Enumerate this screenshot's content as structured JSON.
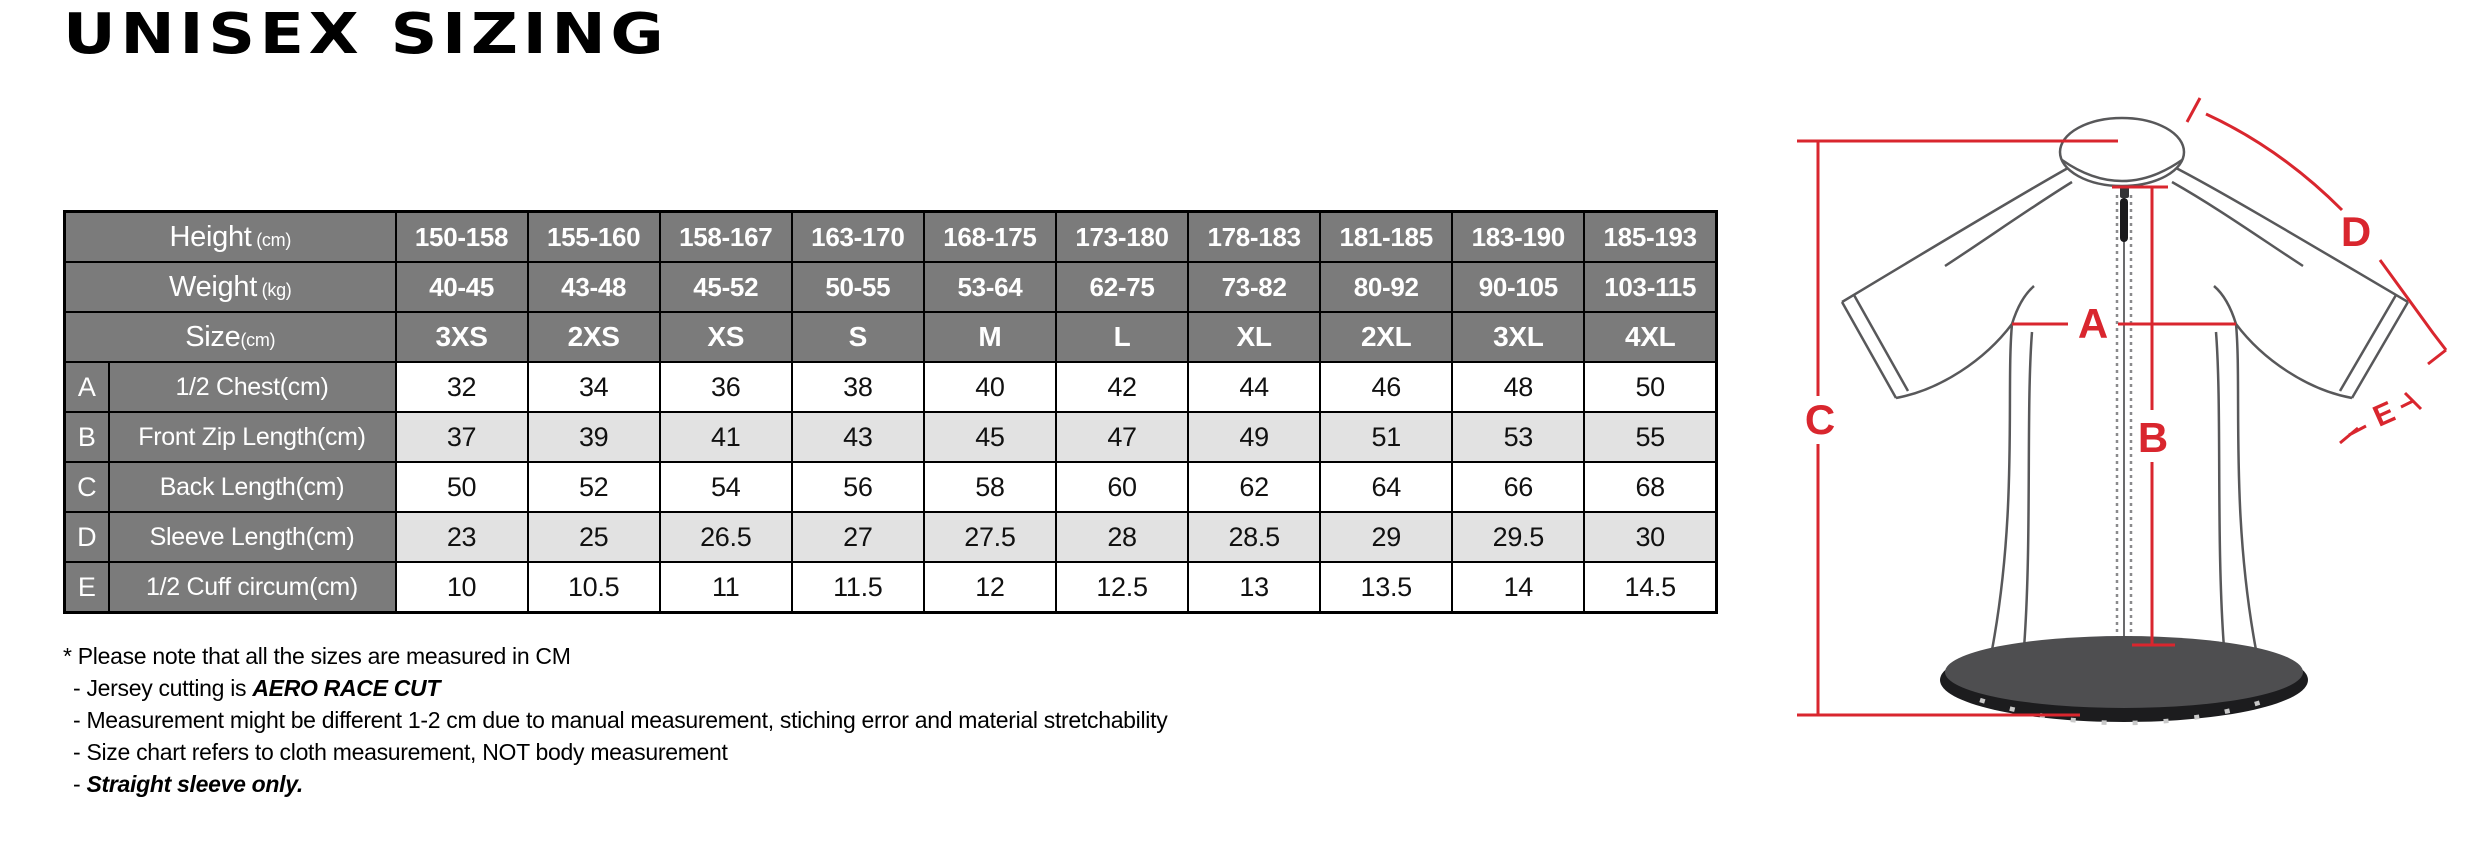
{
  "title": "UNISEX SIZING",
  "table": {
    "header_rows": [
      {
        "label": "Height",
        "unit": "(cm)",
        "values": [
          "150-158",
          "155-160",
          "158-167",
          "163-170",
          "168-175",
          "173-180",
          "178-183",
          "181-185",
          "183-190",
          "185-193"
        ]
      },
      {
        "label": "Weight",
        "unit": "(kg)",
        "values": [
          "40-45",
          "43-48",
          "45-52",
          "50-55",
          "53-64",
          "62-75",
          "73-82",
          "80-92",
          "90-105",
          "103-115"
        ]
      },
      {
        "label": "Size",
        "unit": "(cm)",
        "values": [
          "3XS",
          "2XS",
          "XS",
          "S",
          "M",
          "L",
          "XL",
          "2XL",
          "3XL",
          "4XL"
        ]
      }
    ],
    "measurement_rows": [
      {
        "letter": "A",
        "label": "1/2 Chest(cm)",
        "values": [
          "32",
          "34",
          "36",
          "38",
          "40",
          "42",
          "44",
          "46",
          "48",
          "50"
        ]
      },
      {
        "letter": "B",
        "label": "Front Zip Length(cm)",
        "values": [
          "37",
          "39",
          "41",
          "43",
          "45",
          "47",
          "49",
          "51",
          "53",
          "55"
        ]
      },
      {
        "letter": "C",
        "label": "Back Length(cm)",
        "values": [
          "50",
          "52",
          "54",
          "56",
          "58",
          "60",
          "62",
          "64",
          "66",
          "68"
        ]
      },
      {
        "letter": "D",
        "label": "Sleeve Length(cm)",
        "values": [
          "23",
          "25",
          "26.5",
          "27",
          "27.5",
          "28",
          "28.5",
          "29",
          "29.5",
          "30"
        ]
      },
      {
        "letter": "E",
        "label": "1/2 Cuff circum(cm)",
        "values": [
          "10",
          "10.5",
          "11",
          "11.5",
          "12",
          "12.5",
          "13",
          "13.5",
          "14",
          "14.5"
        ]
      }
    ]
  },
  "notes": [
    {
      "prefix": "*",
      "text": "Please note that all the sizes are measured in CM",
      "emphasis": ""
    },
    {
      "prefix": "-",
      "text": "Jersey cutting is ",
      "emphasis": "AERO RACE CUT"
    },
    {
      "prefix": "-",
      "text": "Measurement might be different 1-2 cm due to manual measurement, stiching error and material stretchability",
      "emphasis": ""
    },
    {
      "prefix": "-",
      "text": "Size chart refers to cloth measurement, NOT body measurement",
      "emphasis": ""
    },
    {
      "prefix": "-",
      "text": "",
      "emphasis": "Straight  sleeve only."
    }
  ],
  "diagram": {
    "letters": [
      "A",
      "B",
      "C",
      "D",
      "E"
    ]
  },
  "colors": {
    "accent_red": "#d9262e",
    "header_gray": "#7b7b7b",
    "alt_row_gray": "#e2e2e2",
    "jersey_line_gray": "#58585a",
    "hem_dark": "#1c1c1e",
    "hem_top": "#4e4e50"
  }
}
